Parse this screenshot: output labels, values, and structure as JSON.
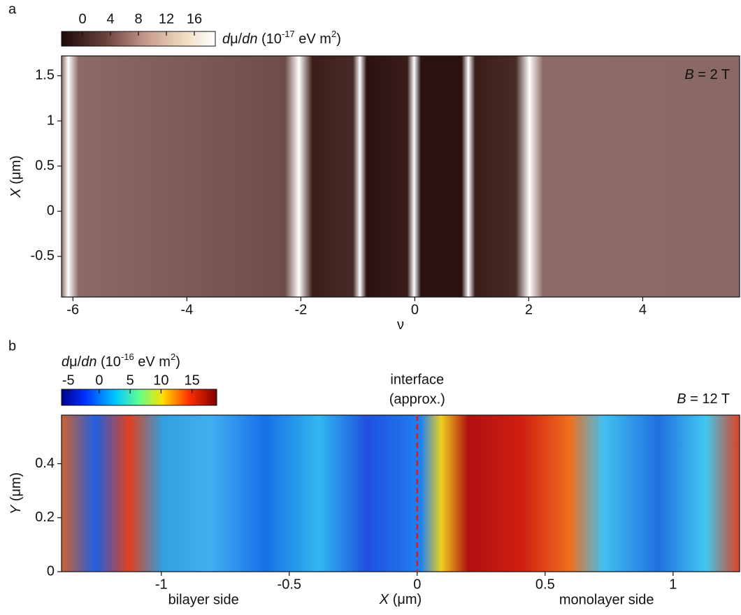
{
  "chart_data": [
    {
      "type": "heatmap",
      "panel_label": "a",
      "xlabel": [
        {
          "text": "ν"
        }
      ],
      "ylabel": [
        {
          "text": "X",
          "style": "italic"
        },
        {
          "text": " (μm)"
        }
      ],
      "xlim": [
        -6.2,
        5.7
      ],
      "xticks": [
        -6,
        -4,
        -2,
        0,
        2,
        4
      ],
      "ylim": [
        -0.95,
        1.72
      ],
      "yticks": [
        -0.5,
        0,
        0.5,
        1,
        1.5
      ],
      "field_label": [
        {
          "text": "B",
          "style": "italic"
        },
        {
          "text": " = 2 T"
        }
      ],
      "colorbar": {
        "colormap": "afmhot",
        "clim": [
          -3,
          19
        ],
        "ticks": [
          0,
          4,
          8,
          12,
          16
        ],
        "label": [
          {
            "text": "d",
            "style": "italic"
          },
          {
            "text": "μ/"
          },
          {
            "text": "dn",
            "style": "italic"
          },
          {
            "text": " (10"
          },
          {
            "text": "-17",
            "style": "sup"
          },
          {
            "text": " eV m"
          },
          {
            "text": "2",
            "style": "sup"
          },
          {
            "text": ")"
          }
        ]
      }
    },
    {
      "type": "heatmap",
      "panel_label": "b",
      "xlabel": [
        {
          "text": "X",
          "style": "italic"
        },
        {
          "text": " (μm)"
        }
      ],
      "ylabel": [
        {
          "text": "Y",
          "style": "italic"
        },
        {
          "text": " (μm)"
        }
      ],
      "xlim": [
        -1.39,
        1.26
      ],
      "xticks": [
        -1,
        -0.5,
        0,
        0.5,
        1
      ],
      "ylim": [
        0,
        0.58
      ],
      "yticks": [
        0,
        0.2,
        0.4
      ],
      "field_label": [
        {
          "text": "B",
          "style": "italic"
        },
        {
          "text": " = 12 T"
        }
      ],
      "interface_x": 0,
      "interface_label": [
        "interface",
        "(approx.)"
      ],
      "left_side": "bilayer side",
      "right_side": "monolayer side",
      "note_color": "#e0191f",
      "colorbar": {
        "colormap": "jet",
        "clim": [
          -6.1,
          19
        ],
        "ticks": [
          -5,
          0,
          5,
          10,
          15
        ],
        "label": [
          {
            "text": "d",
            "style": "italic"
          },
          {
            "text": "μ/"
          },
          {
            "text": "dn",
            "style": "italic"
          },
          {
            "text": " (10"
          },
          {
            "text": "-16",
            "style": "sup"
          },
          {
            "text": " eV m"
          },
          {
            "text": "2",
            "style": "sup"
          },
          {
            "text": ")"
          }
        ]
      }
    }
  ]
}
